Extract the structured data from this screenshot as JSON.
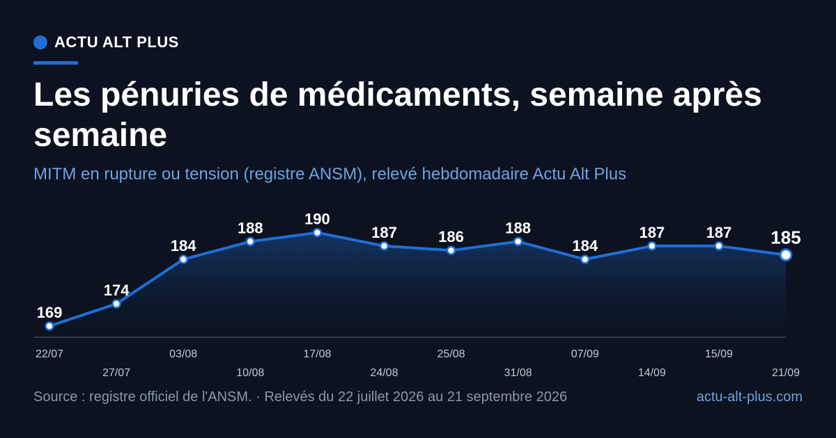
{
  "brand": {
    "name": "ACTU ALT PLUS"
  },
  "title": "Les pénuries de médicaments, semaine après semaine",
  "subtitle": "MITM en rupture ou tension (registre ANSM), relevé hebdomadaire Actu Alt Plus",
  "footer": {
    "source": "Source : registre officiel de l'ANSM. · Relevés du 22 juillet 2026 au 21 septembre 2026",
    "site": "actu-alt-plus.com"
  },
  "colors": {
    "background": "#0c1220",
    "accent": "#1f6fd6",
    "subtitle": "#6fa2e2",
    "muted": "#8a97ac"
  },
  "chart_data": {
    "type": "area",
    "categories": [
      "22/07",
      "27/07",
      "03/08",
      "10/08",
      "17/08",
      "24/08",
      "25/08",
      "31/08",
      "07/09",
      "14/09",
      "15/09",
      "21/09"
    ],
    "values": [
      169,
      174,
      184,
      188,
      190,
      187,
      186,
      188,
      184,
      187,
      187,
      185
    ],
    "data_labels": [
      "169",
      "174",
      "184",
      "188",
      "190",
      "187",
      "186",
      "188",
      "184",
      "187",
      "187",
      "185"
    ],
    "title": "Les pénuries de médicaments, semaine après semaine",
    "subtitle": "MITM en rupture ou tension (registre ANSM), relevé hebdomadaire Actu Alt Plus",
    "xlabel": "",
    "ylabel": "",
    "grid": false,
    "legend": "none",
    "highlight_last": true
  }
}
